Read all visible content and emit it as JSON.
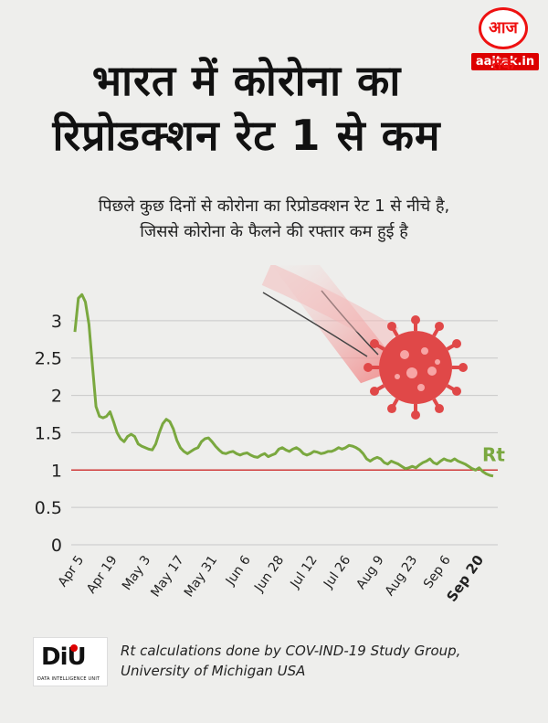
{
  "branding": {
    "logo_top": "आज तक",
    "logo_bottom": "aajtak.in"
  },
  "header": {
    "title_line1": "भारत में कोरोना का",
    "title_line2": "रिप्रोडक्शन रेट 1 से कम",
    "subtitle_line1": "पिछले कुछ दिनों से कोरोना का रिप्रोडक्शन रेट 1 से नीचे है,",
    "subtitle_line2": "जिससे कोरोना के फैलने की रफ्तार कम हुई है"
  },
  "colors": {
    "line": "#7aa83f",
    "threshold": "#d03a3a",
    "virus": "#e04848",
    "grid": "#c8c8c8"
  },
  "chart_data": {
    "type": "line",
    "title": "",
    "xlabel": "",
    "ylabel": "",
    "ylim": [
      0,
      3.5
    ],
    "yticks": [
      "0",
      "0.5",
      "1",
      "1.5",
      "2",
      "2.5",
      "3"
    ],
    "grid": true,
    "xtick_labels": [
      "Apr 5",
      "Apr 19",
      "May 3",
      "May 17",
      "May 31",
      "Jun 6",
      "Jun 28",
      "Jul 12",
      "Jul 26",
      "Aug 9",
      "Aug 23",
      "Sep 6",
      "Sep 20"
    ],
    "series": [
      {
        "name": "Rt",
        "values": [
          2.85,
          3.3,
          3.35,
          3.25,
          2.95,
          2.4,
          1.85,
          1.72,
          1.7,
          1.72,
          1.78,
          1.65,
          1.5,
          1.42,
          1.38,
          1.45,
          1.48,
          1.45,
          1.35,
          1.32,
          1.3,
          1.28,
          1.27,
          1.35,
          1.5,
          1.62,
          1.68,
          1.65,
          1.55,
          1.4,
          1.3,
          1.25,
          1.22,
          1.25,
          1.28,
          1.3,
          1.38,
          1.42,
          1.43,
          1.38,
          1.32,
          1.27,
          1.23,
          1.22,
          1.24,
          1.25,
          1.22,
          1.2,
          1.22,
          1.23,
          1.2,
          1.18,
          1.17,
          1.2,
          1.22,
          1.18,
          1.2,
          1.22,
          1.28,
          1.3,
          1.27,
          1.25,
          1.28,
          1.3,
          1.27,
          1.22,
          1.2,
          1.22,
          1.25,
          1.24,
          1.22,
          1.23,
          1.25,
          1.25,
          1.27,
          1.3,
          1.28,
          1.3,
          1.33,
          1.32,
          1.3,
          1.27,
          1.22,
          1.15,
          1.12,
          1.15,
          1.17,
          1.15,
          1.1,
          1.08,
          1.12,
          1.1,
          1.08,
          1.05,
          1.02,
          1.03,
          1.05,
          1.03,
          1.07,
          1.1,
          1.12,
          1.15,
          1.1,
          1.08,
          1.12,
          1.15,
          1.13,
          1.12,
          1.15,
          1.12,
          1.1,
          1.08,
          1.05,
          1.02,
          1.0,
          1.03,
          0.98,
          0.95,
          0.93,
          0.92
        ]
      }
    ],
    "reference_line": 1,
    "series_label": "Rt"
  },
  "footer": {
    "diu_mark": "DiU",
    "diu_sub": "DATA INTELLIGENCE UNIT",
    "credit_line1": "Rt calculations done by COV-IND-19 Study Group,",
    "credit_line2": "University of Michigan USA"
  }
}
